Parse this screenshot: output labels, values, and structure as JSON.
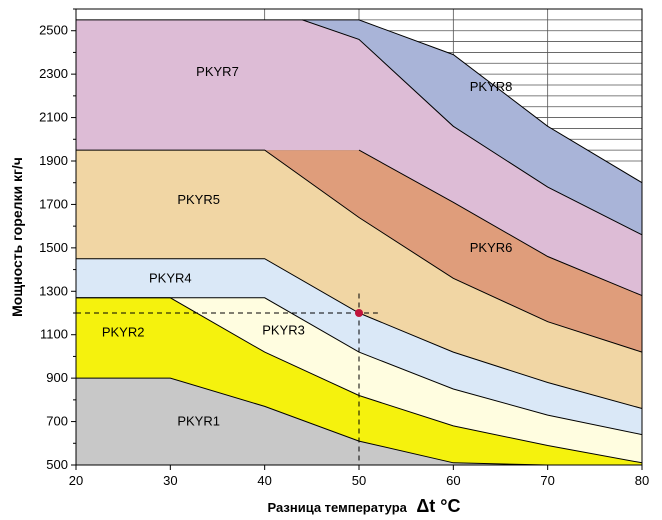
{
  "chart_data": {
    "type": "area",
    "xlabel": "Разница температура",
    "xlabel_symbol": "Δt °C",
    "ylabel": "Мощность горелки кг/ч",
    "xlim": [
      20,
      80
    ],
    "ylim": [
      500,
      2600
    ],
    "x_ticks": [
      "20",
      "30",
      "40",
      "50",
      "60",
      "70",
      "80"
    ],
    "y_ticks": [
      "500",
      "700",
      "900",
      "1100",
      "1300",
      "1500",
      "1700",
      "1900",
      "2100",
      "2300",
      "2500"
    ],
    "grid": "upper-right only (x ≥ 40, y ≥ 1900)",
    "boundaries": {
      "b1": [
        [
          20,
          900
        ],
        [
          30,
          900
        ],
        [
          40,
          770
        ],
        [
          50,
          610
        ],
        [
          60,
          510
        ],
        [
          70,
          475
        ],
        [
          80,
          450
        ]
      ],
      "b2": [
        [
          20,
          1270
        ],
        [
          30,
          1270
        ],
        [
          40,
          1020
        ],
        [
          50,
          820
        ],
        [
          60,
          680
        ],
        [
          70,
          590
        ],
        [
          80,
          510
        ]
      ],
      "b3": [
        [
          20,
          1270
        ],
        [
          40,
          1270
        ],
        [
          50,
          1020
        ],
        [
          60,
          850
        ],
        [
          70,
          730
        ],
        [
          80,
          640
        ]
      ],
      "b4": [
        [
          20,
          1450
        ],
        [
          40,
          1450
        ],
        [
          50,
          1200
        ],
        [
          60,
          1020
        ],
        [
          70,
          880
        ],
        [
          80,
          760
        ]
      ],
      "b5": [
        [
          20,
          1950
        ],
        [
          40,
          1950
        ],
        [
          50,
          1640
        ],
        [
          60,
          1360
        ],
        [
          70,
          1160
        ],
        [
          80,
          1020
        ]
      ],
      "b6": [
        [
          50,
          1950
        ],
        [
          60,
          1710
        ],
        [
          70,
          1460
        ],
        [
          80,
          1280
        ]
      ],
      "b7": [
        [
          20,
          2550
        ],
        [
          44,
          2550
        ],
        [
          50,
          2460
        ],
        [
          60,
          2060
        ],
        [
          70,
          1780
        ],
        [
          80,
          1560
        ]
      ],
      "b8": [
        [
          44,
          2550
        ],
        [
          50,
          2550
        ],
        [
          60,
          2390
        ],
        [
          70,
          2060
        ],
        [
          80,
          1800
        ]
      ]
    },
    "regions": [
      {
        "name": "PKYR1",
        "color": "#c8c8c8",
        "lower": "axis",
        "upper": "b1",
        "label_at": [
          33,
          700
        ]
      },
      {
        "name": "PKYR2",
        "color": "#f5f20d",
        "lower": "b1",
        "upper": "b2",
        "label_at": [
          25,
          1110
        ]
      },
      {
        "name": "PKYR3",
        "color": "#fffde0",
        "lower": "b2",
        "upper": "b3",
        "label_at": [
          42,
          1120
        ]
      },
      {
        "name": "PKYR4",
        "color": "#dae8f7",
        "lower": "b3",
        "upper": "b4",
        "label_at": [
          30,
          1360
        ]
      },
      {
        "name": "PKYR5",
        "color": "#f1d6a4",
        "lower": "b4",
        "upper": "b5",
        "label_at": [
          33,
          1720
        ]
      },
      {
        "name": "PKYR6",
        "color": "#df9d7b",
        "lower": "b5",
        "upper": "b6",
        "label_at": [
          64,
          1500
        ]
      },
      {
        "name": "PKYR7",
        "color": "#ddbcd6",
        "lower": "b5b6",
        "upper": "b7",
        "label_at": [
          35,
          2310
        ]
      },
      {
        "name": "PKYR8",
        "color": "#a9b4d8",
        "lower": "b7",
        "upper": "b8",
        "label_at": [
          64,
          2240
        ]
      }
    ],
    "marker": {
      "x": 50,
      "y": 1200,
      "color": "#c0143c"
    },
    "guide_lines": "dashed from y-axis at 1200 and from x-axis at 50 to the marker"
  }
}
